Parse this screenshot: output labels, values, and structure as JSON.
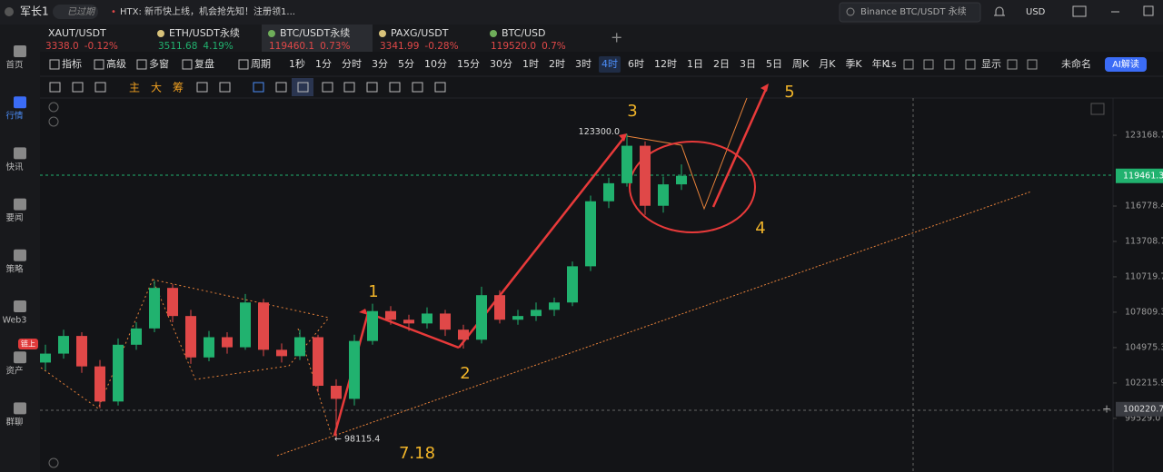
{
  "top_bar": {
    "user": "军长1",
    "status": "已过期",
    "ticker": "HTX: 新币快上线，机会抢先知！注册领1...",
    "search": "Binance BTC/USDT 永续",
    "currency": "USD"
  },
  "tabs": [
    {
      "symbol": "XAUT/USDT",
      "price": "3338.0",
      "change": "-0.12%",
      "color": "#e04848"
    },
    {
      "symbol": "ETH/USDT永续",
      "price": "3511.68",
      "change": "4.19%",
      "color": "#21b26f"
    },
    {
      "symbol": "BTC/USDT永续",
      "price": "119460.1",
      "change": "0.73%",
      "color": "#e04848"
    },
    {
      "symbol": "PAXG/USDT",
      "price": "3341.99",
      "change": "-0.28%",
      "color": "#e04848"
    },
    {
      "symbol": "BTC/USD",
      "price": "119520.0",
      "change": "0.7%",
      "color": "#e04848"
    }
  ],
  "active_tab": 2,
  "toolbar": {
    "items": [
      "指标",
      "高级",
      "多窗",
      "复盘",
      "周期"
    ],
    "intervals": [
      "1秒",
      "1分",
      "分时",
      "3分",
      "5分",
      "10分",
      "15分",
      "30分",
      "1时",
      "2时",
      "3时",
      "4时",
      "6时",
      "12时",
      "1日",
      "2日",
      "3日",
      "5日",
      "周K",
      "月K",
      "季K",
      "年K"
    ],
    "active_interval": 11,
    "right": [
      "1s",
      "显示",
      "未命名"
    ],
    "ai_button": "AI解读"
  },
  "draw_tools": [
    "主",
    "大",
    "筹"
  ],
  "sidebar": {
    "items": [
      "首页",
      "行情",
      "快讯",
      "要闻",
      "策略",
      "Web3",
      "资产",
      "群聊"
    ],
    "active": 1,
    "badge": "链上"
  },
  "chart": {
    "type": "candlestick",
    "log_scale": true,
    "ylim": [
      95590,
      126670
    ],
    "yticks": [
      123168.7,
      116778.4,
      113708.7,
      110719.7,
      107809.3,
      104975.3,
      102215.9,
      {
        "value": 99529,
        "label": "99529.0"
      }
    ],
    "last_price": 119461.3,
    "crosshair_price": 100220.7,
    "up_color": "#21b26f",
    "down_color": "#e04848",
    "candles": [
      [
        103800,
        105200,
        103200,
        104500
      ],
      [
        104500,
        106400,
        104100,
        105900
      ],
      [
        105900,
        106200,
        103000,
        103500
      ],
      [
        103500,
        104000,
        100300,
        100800
      ],
      [
        100800,
        105700,
        100500,
        105200
      ],
      [
        105200,
        107000,
        104800,
        106500
      ],
      [
        106500,
        110400,
        106200,
        109800
      ],
      [
        109800,
        110100,
        107000,
        107500
      ],
      [
        107500,
        108000,
        103700,
        104200
      ],
      [
        104200,
        106300,
        103900,
        105800
      ],
      [
        105800,
        106200,
        104500,
        105000
      ],
      [
        105000,
        109300,
        104800,
        108600
      ],
      [
        108600,
        108900,
        104300,
        104800
      ],
      [
        104800,
        105300,
        103800,
        104300
      ],
      [
        104300,
        106400,
        104000,
        105800
      ],
      [
        105800,
        106000,
        101500,
        102000
      ],
      [
        102000,
        102500,
        98115.4,
        101000
      ],
      [
        101000,
        106000,
        100500,
        105500
      ],
      [
        105500,
        108500,
        105200,
        107900
      ],
      [
        107900,
        108300,
        106800,
        107200
      ],
      [
        107200,
        107600,
        106300,
        106900
      ],
      [
        106900,
        108200,
        106500,
        107700
      ],
      [
        107700,
        108000,
        105900,
        106400
      ],
      [
        106400,
        106800,
        104900,
        105600
      ],
      [
        105600,
        109900,
        105300,
        109200
      ],
      [
        109200,
        109600,
        106900,
        107200
      ],
      [
        107200,
        108000,
        106800,
        107500
      ],
      [
        107500,
        108600,
        107100,
        108000
      ],
      [
        108000,
        109000,
        107500,
        108600
      ],
      [
        108600,
        112000,
        108300,
        111600
      ],
      [
        111600,
        117700,
        111200,
        117200
      ],
      [
        117200,
        119300,
        116600,
        118800
      ],
      [
        118800,
        123300,
        118500,
        122200
      ],
      [
        122200,
        122600,
        116000,
        116800
      ],
      [
        116800,
        119400,
        116200,
        118700
      ],
      [
        118700,
        120500,
        118200,
        119461.3
      ]
    ],
    "high_label": {
      "value": 123300,
      "label": "123300.0"
    },
    "low_label": 98115.4,
    "waves": [
      "1",
      "2",
      "3",
      "4",
      "5"
    ],
    "date": "7.18"
  }
}
